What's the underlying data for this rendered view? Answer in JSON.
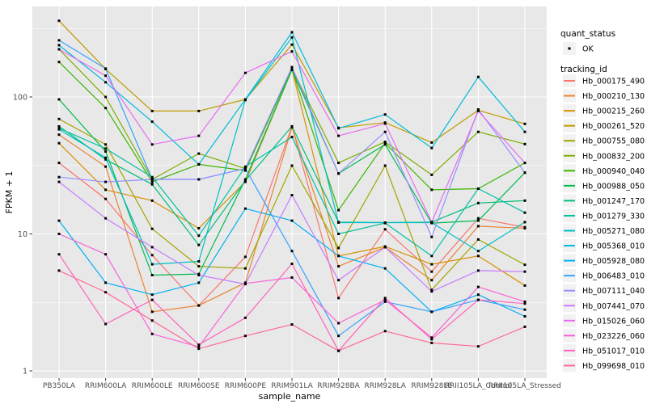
{
  "chart_data": {
    "type": "line",
    "title": "",
    "xlabel": "sample_name",
    "ylabel": "FPKM + 1",
    "y_scale": "log10",
    "y_ticks": [
      1,
      10,
      100
    ],
    "y_tick_labels": [
      "1",
      "10",
      "100"
    ],
    "y_minor_ticks": [
      3.162,
      31.62,
      316.2
    ],
    "ylim": [
      1,
      460
    ],
    "grid": true,
    "legend_position": "right",
    "panel_bg": "#E8E8E8",
    "grid_color": "#FFFFFF",
    "tick_text_color": "#4D4D4D",
    "axis_title_color": "#000000",
    "point_color": "#000000",
    "legend_key_bg": "#F2F2F2",
    "categories": [
      "PB350LA",
      "RRIM600LA",
      "RRIM600LE",
      "RRIM600SE",
      "RRIM600PE",
      "RRIM901LA",
      "RRIM928BA",
      "RRIM928LA",
      "RRIM928LE",
      "RRII105LA_Control",
      "RRII105LA_Stressed"
    ],
    "legend_quant": {
      "title": "quant_status",
      "items": [
        {
          "label": "OK",
          "symbol": "point"
        }
      ]
    },
    "legend_tracking": {
      "title": "tracking_id"
    },
    "series": [
      {
        "name": "Hb_000175_490",
        "color": "#F8766D",
        "values": [
          33,
          18,
          7.0,
          3.0,
          6.8,
          61,
          3.4,
          10.8,
          5.3,
          13,
          11.2
        ]
      },
      {
        "name": "Hb_000210_130",
        "color": "#EA8331",
        "values": [
          53,
          31,
          2.7,
          3.0,
          4.4,
          60,
          5.8,
          8.0,
          4.6,
          11.4,
          11.0
        ]
      },
      {
        "name": "Hb_000215_260",
        "color": "#D89000",
        "values": [
          46,
          21,
          17.5,
          11,
          24,
          158,
          6.9,
          8.1,
          6.0,
          6.9,
          4.2
        ]
      },
      {
        "name": "Hb_000261_520",
        "color": "#C09B00",
        "values": [
          360,
          160,
          79,
          79,
          96,
          241,
          59.5,
          65,
          46.5,
          80,
          63.6
        ]
      },
      {
        "name": "Hb_000755_080",
        "color": "#A3A500",
        "values": [
          69,
          45,
          10.9,
          5.8,
          5.6,
          31.5,
          7.9,
          31.5,
          3.9,
          9.1,
          5.95
        ]
      },
      {
        "name": "Hb_000832_200",
        "color": "#7CAE00",
        "values": [
          223,
          100,
          25,
          38.6,
          30,
          162,
          33,
          47,
          27,
          55.6,
          45.3
        ]
      },
      {
        "name": "Hb_000940_040",
        "color": "#39B600",
        "values": [
          180,
          83,
          24,
          32.2,
          29,
          160,
          14.9,
          46,
          21,
          21.4,
          33
        ]
      },
      {
        "name": "Hb_000988_050",
        "color": "#00BB4E",
        "values": [
          96,
          40,
          5.0,
          5.1,
          25,
          158,
          27.6,
          45,
          12.0,
          12.5,
          28
        ]
      },
      {
        "name": "Hb_001247_170",
        "color": "#00BF7D",
        "values": [
          61,
          35,
          23,
          8.3,
          24.5,
          61,
          12.2,
          12.1,
          12.2,
          16.8,
          17.5
        ]
      },
      {
        "name": "Hb_001279_330",
        "color": "#00C1A3",
        "values": [
          59,
          42,
          26,
          9.7,
          31,
          51,
          10,
          12.0,
          6.9,
          21.4,
          14.3
        ]
      },
      {
        "name": "Hb_005271_080",
        "color": "#00BFC4",
        "values": [
          58,
          36,
          6.0,
          6.3,
          95,
          272,
          12.1,
          12.1,
          12.1,
          7.5,
          12.2
        ]
      },
      {
        "name": "Hb_005368_010",
        "color": "#00BBDB",
        "values": [
          239,
          128,
          66,
          32.2,
          96,
          297,
          59,
          74.5,
          42.4,
          140,
          55.6
        ]
      },
      {
        "name": "Hb_005928_080",
        "color": "#00B0F6",
        "values": [
          12.5,
          4.4,
          3.6,
          4.4,
          15.3,
          12.5,
          6.9,
          5.6,
          2.7,
          3.6,
          2.5
        ]
      },
      {
        "name": "Hb_006483_010",
        "color": "#35A2FF",
        "values": [
          259,
          161,
          25,
          25,
          30,
          7.5,
          1.8,
          3.2,
          2.7,
          3.3,
          2.8
        ]
      },
      {
        "name": "Hb_007111_040",
        "color": "#9590FF",
        "values": [
          26,
          24,
          25,
          25,
          30,
          165,
          27.6,
          55.6,
          9.5,
          81,
          28
        ]
      },
      {
        "name": "Hb_007441_070",
        "color": "#C77CFF",
        "values": [
          24,
          13,
          8.0,
          5.0,
          4.3,
          19.2,
          4.6,
          8.0,
          3.8,
          5.4,
          5.3
        ]
      },
      {
        "name": "Hb_015026_060",
        "color": "#E76BF3",
        "values": [
          223,
          143,
          45,
          52,
          150,
          215,
          52,
          64,
          12.2,
          79,
          33
        ]
      },
      {
        "name": "Hb_023226_060",
        "color": "#FA62DB",
        "values": [
          10,
          7.1,
          1.86,
          1.5,
          4.35,
          4.8,
          2.23,
          3.3,
          1.75,
          4.1,
          3.2
        ]
      },
      {
        "name": "Hb_051017_010",
        "color": "#FF62BC",
        "values": [
          7.1,
          2.2,
          3.3,
          1.55,
          2.44,
          6.05,
          1.4,
          3.4,
          1.7,
          3.3,
          3.1
        ]
      },
      {
        "name": "Hb_099698_010",
        "color": "#FF6A98",
        "values": [
          5.4,
          3.75,
          2.33,
          1.45,
          1.8,
          2.18,
          1.4,
          1.95,
          1.6,
          1.51,
          2.1
        ]
      }
    ]
  }
}
